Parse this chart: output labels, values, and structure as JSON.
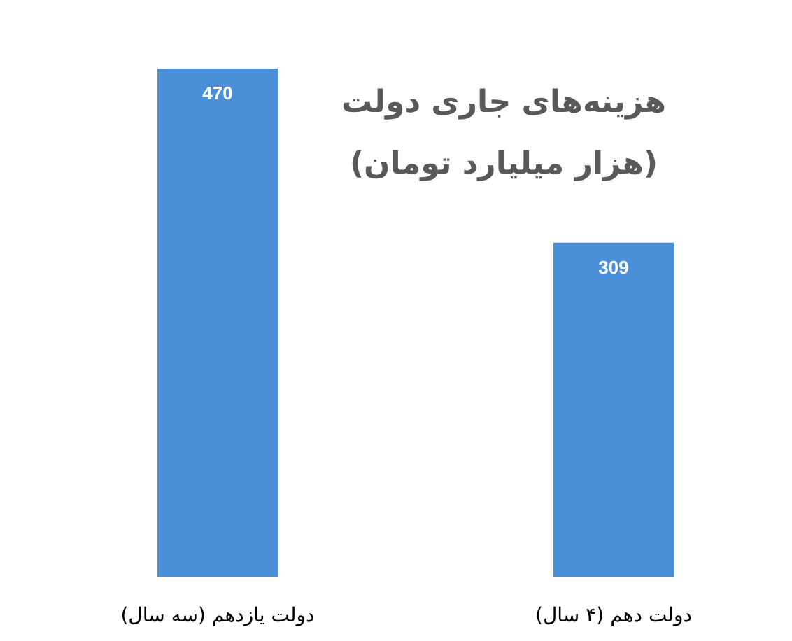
{
  "chart_data": {
    "type": "bar",
    "title": "هزینه‌های جاری دولت",
    "subtitle": "(هزار میلیارد تومان)",
    "categories": [
      "دولت یازدهم (سه سال)",
      "دولت دهم (۴ سال)"
    ],
    "values": [
      470,
      309
    ],
    "color": "#4a90d9",
    "data_labels": true
  }
}
